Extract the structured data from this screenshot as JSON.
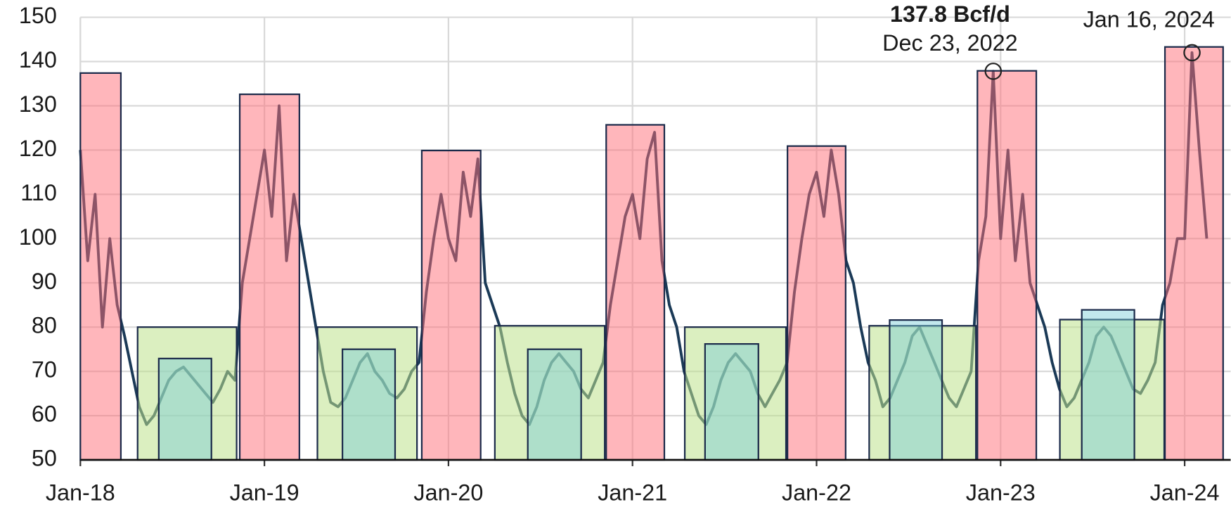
{
  "chart_data": {
    "type": "line",
    "x": [
      2018.0,
      2018.04,
      2018.08,
      2018.12,
      2018.16,
      2018.2,
      2018.24,
      2018.28,
      2018.32,
      2018.36,
      2018.4,
      2018.44,
      2018.48,
      2018.52,
      2018.56,
      2018.6,
      2018.64,
      2018.68,
      2018.72,
      2018.76,
      2018.8,
      2018.84,
      2018.88,
      2018.92,
      2018.96,
      2019.0,
      2019.04,
      2019.08,
      2019.12,
      2019.16,
      2019.2,
      2019.24,
      2019.28,
      2019.32,
      2019.36,
      2019.4,
      2019.44,
      2019.48,
      2019.52,
      2019.56,
      2019.6,
      2019.64,
      2019.68,
      2019.72,
      2019.76,
      2019.8,
      2019.84,
      2019.88,
      2019.92,
      2019.96,
      2020.0,
      2020.04,
      2020.08,
      2020.12,
      2020.16,
      2020.2,
      2020.24,
      2020.28,
      2020.32,
      2020.36,
      2020.4,
      2020.44,
      2020.48,
      2020.52,
      2020.56,
      2020.6,
      2020.64,
      2020.68,
      2020.72,
      2020.76,
      2020.8,
      2020.84,
      2020.88,
      2020.92,
      2020.96,
      2021.0,
      2021.04,
      2021.08,
      2021.12,
      2021.16,
      2021.2,
      2021.24,
      2021.28,
      2021.32,
      2021.36,
      2021.4,
      2021.44,
      2021.48,
      2021.52,
      2021.56,
      2021.6,
      2021.64,
      2021.68,
      2021.72,
      2021.76,
      2021.8,
      2021.84,
      2021.88,
      2021.92,
      2021.96,
      2022.0,
      2022.04,
      2022.08,
      2022.12,
      2022.16,
      2022.2,
      2022.24,
      2022.28,
      2022.32,
      2022.36,
      2022.4,
      2022.44,
      2022.48,
      2022.52,
      2022.56,
      2022.6,
      2022.64,
      2022.68,
      2022.72,
      2022.76,
      2022.8,
      2022.84,
      2022.88,
      2022.92,
      2022.96,
      2023.0,
      2023.04,
      2023.08,
      2023.12,
      2023.16,
      2023.2,
      2023.24,
      2023.28,
      2023.32,
      2023.36,
      2023.4,
      2023.44,
      2023.48,
      2023.52,
      2023.56,
      2023.6,
      2023.64,
      2023.68,
      2023.72,
      2023.76,
      2023.8,
      2023.84,
      2023.88,
      2023.92,
      2023.96,
      2024.0,
      2024.04,
      2024.08,
      2024.12
    ],
    "series": [
      {
        "color": "#1b3a57",
        "values": [
          120,
          95,
          110,
          80,
          100,
          85,
          78,
          70,
          62,
          58,
          60,
          64,
          68,
          70,
          71,
          69,
          67,
          65,
          63,
          66,
          70,
          68,
          90,
          100,
          110,
          120,
          105,
          130,
          95,
          110,
          100,
          90,
          80,
          70,
          63,
          62,
          64,
          68,
          72,
          74,
          70,
          68,
          65,
          64,
          66,
          70,
          72,
          88,
          100,
          110,
          100,
          95,
          115,
          105,
          118,
          90,
          85,
          80,
          72,
          65,
          60,
          58,
          62,
          68,
          72,
          74,
          72,
          70,
          66,
          64,
          68,
          72,
          85,
          95,
          105,
          110,
          100,
          118,
          124,
          95,
          85,
          80,
          70,
          65,
          60,
          58,
          62,
          68,
          72,
          74,
          72,
          70,
          65,
          62,
          65,
          68,
          72,
          88,
          100,
          110,
          115,
          105,
          120,
          110,
          95,
          90,
          80,
          72,
          68,
          62,
          64,
          68,
          72,
          78,
          80,
          76,
          72,
          68,
          64,
          62,
          66,
          70,
          95,
          105,
          137.8,
          100,
          120,
          95,
          110,
          90,
          85,
          80,
          72,
          66,
          62,
          64,
          68,
          72,
          78,
          80,
          78,
          74,
          70,
          66,
          65,
          68,
          72,
          85,
          90,
          100,
          100,
          142,
          120,
          100
        ]
      }
    ],
    "winter_boxes": {
      "color": "rgba(255,110,120,0.5)",
      "boxes": [
        {
          "start": 2018.0,
          "end": 2018.22,
          "top": 137.4
        },
        {
          "start": 2018.866,
          "end": 2019.19,
          "top": 132.6
        },
        {
          "start": 2019.855,
          "end": 2020.175,
          "top": 119.9
        },
        {
          "start": 2020.857,
          "end": 2021.173,
          "top": 125.7
        },
        {
          "start": 2021.842,
          "end": 2022.158,
          "top": 120.9
        },
        {
          "start": 2022.874,
          "end": 2023.194,
          "top": 137.9
        },
        {
          "start": 2023.893,
          "end": 2024.209,
          "top": 143.3
        }
      ]
    },
    "summer_boxes": {
      "color": "rgba(190,225,140,0.55)",
      "boxes": [
        {
          "start": 2018.311,
          "end": 2018.849,
          "top": 80
        },
        {
          "start": 2019.288,
          "end": 2019.829,
          "top": 80
        },
        {
          "start": 2020.252,
          "end": 2020.849,
          "top": 80.3
        },
        {
          "start": 2021.284,
          "end": 2021.834,
          "top": 80
        },
        {
          "start": 2022.286,
          "end": 2022.866,
          "top": 80.3
        },
        {
          "start": 2023.322,
          "end": 2023.889,
          "top": 81.7
        }
      ]
    },
    "summer_peak_boxes": {
      "color": "rgba(120,205,215,0.45)",
      "boxes": [
        {
          "start": 2018.426,
          "end": 2018.712,
          "top": 72.9
        },
        {
          "start": 2019.424,
          "end": 2019.71,
          "top": 75
        },
        {
          "start": 2020.431,
          "end": 2020.721,
          "top": 75
        },
        {
          "start": 2021.394,
          "end": 2021.684,
          "top": 76.2
        },
        {
          "start": 2022.397,
          "end": 2022.682,
          "top": 81.6
        },
        {
          "start": 2023.441,
          "end": 2023.727,
          "top": 83.9
        }
      ]
    },
    "annotations": [
      {
        "label": "137.8 Bcf/d",
        "date": "Dec 23, 2022",
        "x": 2022.96,
        "y": 137.8
      },
      {
        "date": "Jan 16, 2024",
        "x": 2024.04,
        "y": 142
      }
    ],
    "xlim": [
      2018,
      2024.25
    ],
    "xticks": [
      {
        "value": 2018,
        "label": "Jan-18"
      },
      {
        "value": 2019,
        "label": "Jan-19"
      },
      {
        "value": 2020,
        "label": "Jan-20"
      },
      {
        "value": 2021,
        "label": "Jan-21"
      },
      {
        "value": 2022,
        "label": "Jan-22"
      },
      {
        "value": 2023,
        "label": "Jan-23"
      },
      {
        "value": 2024,
        "label": "Jan-24"
      }
    ],
    "ylim": [
      50,
      150
    ],
    "yticks": [
      50,
      60,
      70,
      80,
      90,
      100,
      110,
      120,
      130,
      140,
      150
    ],
    "grid": true
  }
}
